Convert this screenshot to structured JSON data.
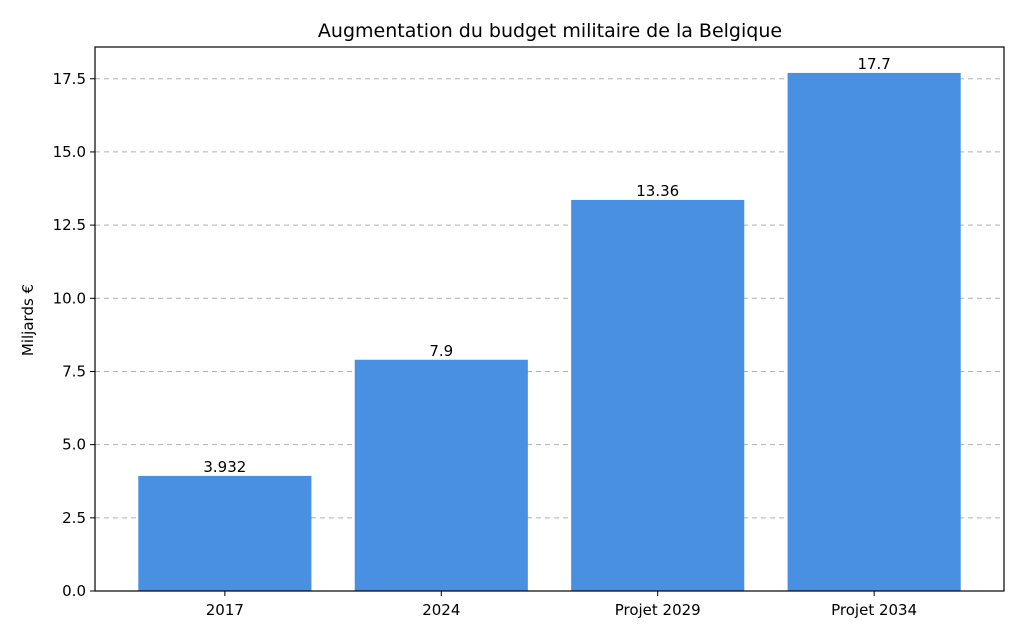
{
  "chart_data": {
    "type": "bar",
    "title": "Augmentation du budget militaire de la Belgique",
    "xlabel": "",
    "ylabel": "Miljards €",
    "categories": [
      "2017",
      "2024",
      "Projet 2029",
      "Projet 2034"
    ],
    "values": [
      3.932,
      7.9,
      13.36,
      17.7
    ],
    "data_labels": [
      "3.932",
      "7.9",
      "13.36",
      "17.7"
    ],
    "ylim": [
      0,
      18.585
    ],
    "yticks": [
      0.0,
      2.5,
      5.0,
      7.5,
      10.0,
      12.5,
      15.0,
      17.5
    ],
    "ytick_labels": [
      "0.0",
      "2.5",
      "5.0",
      "7.5",
      "10.0",
      "12.5",
      "15.0",
      "17.5"
    ],
    "grid": "y-dashed",
    "bar_color": "#4a90e2",
    "grid_color": "#b0b0b0"
  }
}
